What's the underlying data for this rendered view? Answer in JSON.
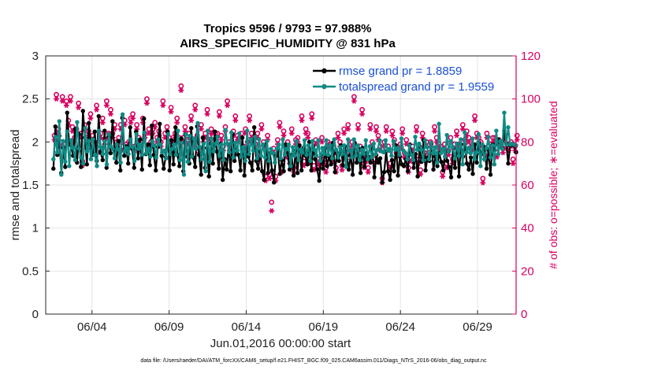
{
  "chart_data": {
    "type": "line",
    "title": "Tropics 9596 / 9793 = 97.988%",
    "subtitle": "AIRS_SPECIFIC_HUMIDITY @ 831 hPa",
    "xlabel": "Jun.01,2016 00:00:00 start",
    "ylabel": "rmse and totalspread",
    "y2label": "# of obs: o=possible; ∗=evaluated",
    "xlim": [
      0,
      30.5
    ],
    "ylim": [
      0,
      3
    ],
    "y2lim": [
      0,
      120
    ],
    "xticks": [
      3,
      8,
      13,
      18,
      23,
      28
    ],
    "xtick_labels": [
      "06/04",
      "06/09",
      "06/14",
      "06/19",
      "06/24",
      "06/29"
    ],
    "yticks": [
      0,
      0.5,
      1,
      1.5,
      2,
      2.5,
      3
    ],
    "ytick_labels": [
      "0",
      "0.5",
      "1",
      "1.5",
      "2",
      "2.5",
      "3"
    ],
    "y2ticks": [
      0,
      20,
      40,
      60,
      80,
      100,
      120
    ],
    "y2tick_labels": [
      "0",
      "20",
      "40",
      "60",
      "80",
      "100",
      "120"
    ],
    "grid": true,
    "legend": [
      "rmse grand pr = 1.8859",
      "totalspread grand pr = 1.9559"
    ],
    "legend_position": "top-right",
    "footnote": "data file: /Users/raeder/DAI/ATM_forcXX/CAM6_setup/f.e21.FHIST_BGC.f09_025.CAM6assim.011/Diags_NTrS_2016-06/obs_diag_output.nc",
    "colors": {
      "rmse": "#000000",
      "spread": "#0f8a84",
      "obs": "#d6005f",
      "grid": "#e4e4e4"
    },
    "series": [
      {
        "name": "rmse",
        "values": [
          1.69,
          2.18,
          1.85,
          2.07,
          1.64,
          1.93,
          1.71,
          2.34,
          1.97,
          1.96,
          1.84,
          2.15,
          1.76,
          2.09,
          1.71,
          2.36,
          2.05,
          1.74,
          2.22,
          1.92,
          1.85,
          2.12,
          1.78,
          2.3,
          1.88,
          1.79,
          2.13,
          1.7,
          2.06,
          1.87,
          2.24,
          1.92,
          1.76,
          2.01,
          1.67,
          2.28,
          1.84,
          1.95,
          1.75,
          2.17,
          1.92,
          1.7,
          2.12,
          1.81,
          2.03,
          1.68,
          2.27,
          1.86,
          1.97,
          1.73,
          2.19,
          1.85,
          1.67,
          1.94,
          2.21,
          1.84,
          1.69,
          1.82,
          2.12,
          1.67,
          2.02,
          1.74,
          2.17,
          1.85,
          1.72,
          2.04,
          1.66,
          2.09,
          1.83,
          1.75,
          2.16,
          1.82,
          1.71,
          2.18,
          1.85,
          1.62,
          2.05,
          1.7,
          1.93,
          1.6,
          1.98,
          1.75,
          2.12,
          1.89,
          1.69,
          1.98,
          1.56,
          1.8,
          1.68,
          1.97,
          1.66,
          2.09,
          1.78,
          1.93,
          1.85,
          1.67,
          2.05,
          1.61,
          1.93,
          1.83,
          1.76,
          1.67,
          2.17,
          1.78,
          1.69,
          1.89,
          1.66,
          1.56,
          1.97,
          1.64,
          1.87,
          1.67,
          1.53,
          1.84,
          1.91,
          1.63,
          1.79,
          1.66,
          1.97,
          1.87,
          1.68,
          1.85,
          1.61,
          1.9,
          1.64,
          1.96,
          1.67,
          1.93,
          1.84,
          1.74,
          2.0,
          1.67,
          1.95,
          1.8,
          1.68,
          1.55,
          1.85,
          1.69,
          1.93,
          1.72,
          1.83,
          1.74,
          1.99,
          1.65,
          1.87,
          1.78,
          1.96,
          1.73,
          1.95,
          1.84,
          1.68,
          1.85,
          1.62,
          1.99,
          1.76,
          1.92,
          1.64,
          1.93,
          1.71,
          1.87,
          1.83,
          1.76,
          1.92,
          1.59,
          1.85,
          1.76,
          1.81,
          1.53,
          1.65,
          1.89,
          1.66,
          1.56,
          1.79,
          1.66,
          1.96,
          1.61,
          1.83,
          1.74,
          1.72,
          1.8,
          1.66,
          1.97,
          1.86,
          1.7,
          1.86,
          1.6,
          1.95,
          1.77,
          2.02,
          1.67,
          1.82,
          1.78,
          1.98,
          1.68,
          1.83,
          1.72,
          1.87,
          1.77,
          1.67,
          1.89,
          1.78,
          1.71,
          1.59,
          1.93,
          1.7,
          1.98,
          1.6,
          1.97,
          1.83,
          1.98,
          1.75,
          1.68,
          1.82,
          1.63,
          1.97,
          1.76,
          1.99,
          1.86,
          1.87,
          1.94,
          1.69,
          1.91,
          1.62,
          1.97,
          1.91,
          1.98,
          2.03,
          1.99,
          1.93,
          2.13,
          1.98,
          1.75,
          1.96,
          1.97,
          1.96,
          1.88
        ]
      },
      {
        "name": "totalspread",
        "values": [
          1.8,
          2.06,
          1.88,
          2.24,
          1.62,
          2.01,
          1.77,
          2.12,
          1.72,
          2.02,
          1.93,
          1.79,
          2.23,
          1.92,
          1.82,
          1.75,
          2.16,
          1.89,
          2.01,
          1.8,
          2.03,
          1.85,
          1.72,
          2.13,
          1.94,
          1.86,
          2.01,
          1.74,
          2.09,
          1.95,
          1.92,
          1.81,
          1.97,
          1.91,
          1.76,
          2.32,
          1.89,
          1.93,
          1.86,
          2.03,
          1.94,
          1.78,
          2.09,
          1.92,
          1.97,
          1.85,
          2.11,
          1.87,
          1.92,
          1.83,
          2.01,
          1.96,
          1.82,
          2.03,
          1.97,
          1.88,
          1.9,
          1.81,
          2.09,
          1.86,
          1.92,
          1.97,
          1.85,
          2.13,
          1.79,
          1.99,
          1.62,
          2.09,
          1.77,
          2.07,
          1.83,
          2.04,
          1.92,
          2.22,
          1.94,
          1.8,
          1.98,
          1.66,
          2.13,
          1.77,
          2.04,
          1.89,
          1.98,
          2.06,
          1.84,
          1.97,
          1.79,
          2.14,
          1.98,
          1.88,
          2.11,
          1.82,
          1.99,
          1.9,
          2.1,
          1.83,
          1.94,
          1.78,
          2.13,
          1.86,
          2.03,
          1.9,
          2.06,
          1.81,
          2.03,
          1.84,
          1.97,
          1.82,
          2.01,
          1.78,
          1.92,
          1.87,
          1.76,
          1.92,
          1.97,
          1.81,
          2.03,
          1.85,
          1.92,
          1.97,
          1.72,
          1.94,
          1.84,
          2.01,
          1.79,
          1.91,
          1.88,
          2.02,
          1.85,
          1.96,
          1.78,
          2.01,
          1.91,
          1.84,
          2.02,
          1.78,
          1.93,
          1.86,
          2.02,
          1.85,
          1.96,
          1.81,
          2.03,
          1.91,
          1.82,
          1.94,
          1.86,
          1.96,
          1.71,
          2.03,
          1.9,
          1.82,
          2.03,
          1.84,
          1.96,
          1.79,
          1.91,
          1.86,
          2.02,
          1.8,
          1.95,
          1.82,
          1.98,
          1.86,
          1.91,
          2.02,
          1.89,
          1.88,
          2.02,
          1.9,
          1.92,
          1.84,
          2.01,
          1.91,
          1.93,
          1.85,
          2.04,
          1.9,
          1.87,
          1.8,
          1.96,
          1.85,
          1.79,
          2.06,
          1.91,
          1.98,
          1.91,
          1.79,
          2.02,
          1.94,
          1.8,
          1.99,
          1.87,
          1.94,
          1.76,
          2.21,
          1.87,
          1.92,
          1.83,
          2.08,
          1.89,
          2.01,
          1.94,
          1.81,
          1.98,
          1.84,
          2.03,
          1.74,
          2.11,
          1.88,
          1.93,
          1.87,
          2.04,
          1.8,
          1.88,
          2.09,
          1.72,
          1.97,
          1.8,
          1.93,
          2.06,
          1.82,
          1.96,
          1.74,
          2.13,
          1.86,
          2.01,
          1.92,
          2.34,
          1.97,
          2.17,
          1.97,
          1.98,
          1.97,
          1.96
        ]
      },
      {
        "name": "obs_possible",
        "values": [
          83,
          102,
          86,
          80,
          101,
          79,
          99,
          90,
          101,
          87,
          82,
          86,
          98,
          84,
          71,
          88,
          80,
          85,
          93,
          83,
          80,
          97,
          77,
          84,
          91,
          81,
          99,
          84,
          95,
          84,
          88,
          80,
          82,
          88,
          78,
          90,
          79,
          80,
          91,
          93,
          78,
          88,
          82,
          80,
          91,
          84,
          100,
          86,
          80,
          86,
          89,
          82,
          85,
          80,
          99,
          84,
          87,
          82,
          96,
          82,
          84,
          91,
          82,
          106,
          82,
          87,
          81,
          84,
          92,
          80,
          97,
          83,
          77,
          88,
          82,
          84,
          95,
          83,
          86,
          80,
          84,
          84,
          94,
          83,
          78,
          87,
          99,
          80,
          78,
          85,
          92,
          83,
          82,
          84,
          78,
          86,
          80,
          92,
          84,
          82,
          79,
          84,
          75,
          88,
          80,
          64,
          83,
          65,
          52,
          77,
          64,
          81,
          89,
          68,
          85,
          75,
          80,
          72,
          86,
          68,
          81,
          82,
          75,
          92,
          71,
          86,
          84,
          72,
          93,
          69,
          81,
          72,
          71,
          82,
          72,
          68,
          80,
          79,
          73,
          77,
          68,
          84,
          80,
          69,
          86,
          74,
          88,
          76,
          80,
          101,
          78,
          88,
          78,
          95,
          70,
          73,
          68,
          88,
          80,
          72,
          87,
          83,
          78,
          63,
          80,
          87,
          78,
          70,
          85,
          81,
          75,
          77,
          79,
          86,
          75,
          81,
          68,
          73,
          78,
          74,
          87,
          72,
          67,
          84,
          75,
          80,
          75,
          80,
          77,
          87,
          82,
          79,
          78,
          66,
          79,
          70,
          76,
          82,
          72,
          79,
          85,
          79,
          76,
          88,
          81,
          85,
          82,
          80,
          78,
          92,
          84,
          82,
          80,
          63,
          74,
          84,
          78,
          79,
          82,
          82,
          75,
          81,
          80,
          77,
          83,
          79,
          78,
          80,
          72,
          78,
          83
        ]
      },
      {
        "name": "obs_evaluated",
        "values": [
          81,
          100,
          84,
          78,
          99,
          77,
          97,
          88,
          99,
          85,
          80,
          84,
          96,
          82,
          69,
          86,
          78,
          83,
          91,
          81,
          78,
          95,
          75,
          82,
          89,
          79,
          97,
          82,
          93,
          82,
          86,
          78,
          80,
          86,
          76,
          88,
          77,
          78,
          89,
          91,
          76,
          86,
          80,
          78,
          89,
          82,
          98,
          84,
          78,
          84,
          87,
          80,
          83,
          78,
          97,
          82,
          85,
          80,
          94,
          80,
          82,
          89,
          80,
          104,
          80,
          85,
          79,
          82,
          90,
          78,
          95,
          81,
          75,
          86,
          80,
          82,
          93,
          81,
          84,
          78,
          82,
          82,
          92,
          81,
          76,
          85,
          97,
          78,
          76,
          83,
          90,
          81,
          80,
          82,
          76,
          84,
          78,
          90,
          82,
          80,
          77,
          82,
          73,
          86,
          78,
          62,
          81,
          63,
          48,
          75,
          62,
          79,
          87,
          66,
          83,
          73,
          78,
          70,
          84,
          66,
          79,
          80,
          73,
          90,
          69,
          84,
          82,
          70,
          91,
          67,
          79,
          70,
          69,
          80,
          70,
          66,
          78,
          77,
          71,
          75,
          66,
          82,
          78,
          67,
          84,
          72,
          86,
          74,
          78,
          99,
          76,
          86,
          76,
          93,
          68,
          71,
          66,
          86,
          78,
          70,
          85,
          81,
          76,
          61,
          78,
          85,
          76,
          68,
          83,
          79,
          73,
          75,
          77,
          84,
          73,
          79,
          66,
          71,
          76,
          72,
          85,
          70,
          65,
          82,
          73,
          78,
          73,
          78,
          75,
          85,
          80,
          77,
          76,
          64,
          77,
          68,
          74,
          80,
          70,
          77,
          83,
          77,
          74,
          86,
          79,
          83,
          80,
          78,
          76,
          90,
          82,
          80,
          78,
          61,
          72,
          82,
          76,
          77,
          80,
          80,
          73,
          79,
          78,
          75,
          81,
          77,
          76,
          78,
          70,
          76,
          81
        ]
      }
    ]
  }
}
